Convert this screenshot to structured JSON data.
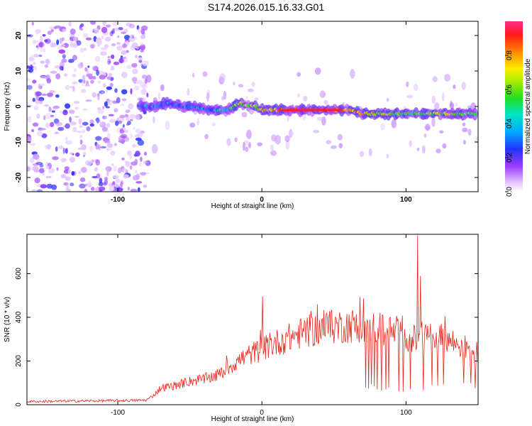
{
  "title": "S174.2026.015.16.33.G01",
  "chart_data": [
    {
      "type": "heatmap",
      "xlabel": "Height of straight line (km)",
      "ylabel": "Frequency (Hz)",
      "xlim": [
        -163,
        150
      ],
      "ylim": [
        -24,
        24
      ],
      "xticks": [
        "-100",
        "0",
        "100"
      ],
      "xtick_values": [
        -100,
        0,
        100
      ],
      "yticks": [
        "-20",
        "-10",
        "0",
        "10",
        "20"
      ],
      "ytick_values": [
        -20,
        -10,
        0,
        10,
        20
      ],
      "colorbar": {
        "label": "Normalized spectral amplitude",
        "range": [
          0,
          1
        ],
        "ticks": [
          "0.0",
          "0.2",
          "0.4",
          "0.6",
          "0.8"
        ],
        "tick_values": [
          0.0,
          0.2,
          0.4,
          0.6,
          0.8
        ]
      },
      "ridge": {
        "x": [
          -85,
          -75,
          -65,
          -55,
          -45,
          -35,
          -25,
          -20,
          -15,
          -10,
          -5,
          0,
          10,
          20,
          30,
          40,
          50,
          60,
          70,
          80,
          90,
          100,
          110,
          120,
          130,
          140,
          148
        ],
        "y": [
          0,
          0,
          1,
          0,
          0,
          -1,
          -1,
          0,
          1,
          0,
          0,
          -1,
          -1,
          -1,
          -1,
          -1,
          -1,
          -1,
          -2,
          -2,
          -2,
          -2,
          -2,
          -2,
          -2,
          -2,
          -2
        ],
        "amplitude": [
          0.3,
          0.3,
          0.3,
          0.3,
          0.3,
          0.35,
          0.45,
          0.55,
          0.7,
          0.6,
          0.6,
          0.7,
          0.8,
          0.9,
          0.95,
          0.95,
          0.9,
          0.8,
          0.75,
          0.7,
          0.6,
          0.55,
          0.55,
          0.6,
          0.7,
          0.55,
          0.5
        ]
      },
      "noise_region_x": [
        -163,
        -85
      ]
    },
    {
      "type": "line",
      "xlabel": "Height of straight line (km)",
      "ylabel": "SNR (10 * v/v)",
      "xlim": [
        -163,
        150
      ],
      "ylim": [
        0,
        780
      ],
      "xticks": [
        "-100",
        "0",
        "100"
      ],
      "xtick_values": [
        -100,
        0,
        100
      ],
      "yticks": [
        "0",
        "200",
        "400",
        "600"
      ],
      "ytick_values": [
        0,
        200,
        400,
        600
      ],
      "line_color": "#e8271d",
      "envelope": {
        "x": [
          -163,
          -120,
          -90,
          -80,
          -75,
          -70,
          -60,
          -50,
          -40,
          -30,
          -20,
          -10,
          0,
          10,
          20,
          30,
          40,
          50,
          60,
          70,
          80,
          90,
          100,
          108,
          115,
          120,
          130,
          140,
          150
        ],
        "y": [
          15,
          18,
          20,
          22,
          45,
          80,
          90,
          110,
          120,
          140,
          190,
          230,
          260,
          290,
          315,
          340,
          355,
          365,
          370,
          370,
          360,
          340,
          320,
          300,
          330,
          320,
          300,
          270,
          240
        ]
      },
      "spikes": [
        {
          "x": 0.5,
          "y": 495
        },
        {
          "x": 108,
          "y": 775
        },
        {
          "x": 110,
          "y": 590
        }
      ],
      "dropouts_x": [
        72,
        74,
        76,
        78,
        80,
        83,
        86,
        88,
        95,
        98,
        103,
        112,
        118,
        122,
        126,
        140,
        145,
        148
      ]
    }
  ]
}
